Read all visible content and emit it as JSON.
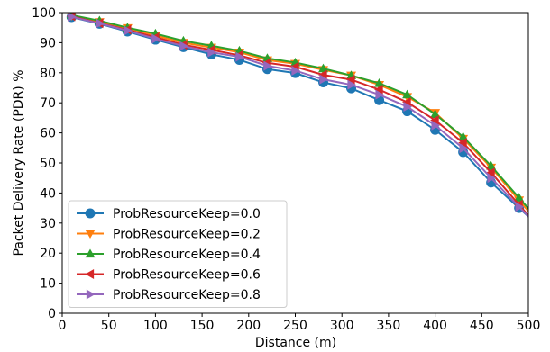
{
  "chart_data": {
    "type": "line",
    "title": "",
    "xlabel": "Distance (m)",
    "ylabel": "Packet Delivery Rate (PDR) %",
    "xlim": [
      0,
      500
    ],
    "ylim": [
      0,
      100
    ],
    "xticks": [
      0,
      50,
      100,
      150,
      200,
      250,
      300,
      350,
      400,
      450,
      500
    ],
    "yticks": [
      0,
      10,
      20,
      30,
      40,
      50,
      60,
      70,
      80,
      90,
      100
    ],
    "grid": false,
    "legend_position": "lower-left",
    "x": [
      10,
      40,
      70,
      100,
      130,
      160,
      190,
      220,
      250,
      280,
      310,
      340,
      370,
      400,
      430,
      460,
      490
    ],
    "series": [
      {
        "name": "ProbResourceKeep=0.0",
        "color": "#1f77b4",
        "marker": "circle",
        "values": [
          98.5,
          96.3,
          93.7,
          91.0,
          88.5,
          86.1,
          84.3,
          81.2,
          79.9,
          76.8,
          74.8,
          70.9,
          67.2,
          61.0,
          53.6,
          43.5,
          35.0
        ]
      },
      {
        "name": "ProbResourceKeep=0.2",
        "color": "#ff7f0e",
        "marker": "triangle-down",
        "values": [
          99.0,
          96.9,
          94.9,
          92.4,
          90.0,
          88.4,
          86.8,
          84.2,
          83.0,
          81.0,
          79.1,
          76.0,
          72.0,
          66.7,
          58.1,
          48.5,
          37.6
        ]
      },
      {
        "name": "ProbResourceKeep=0.4",
        "color": "#2ca02c",
        "marker": "triangle-up",
        "values": [
          99.2,
          97.3,
          95.0,
          93.0,
          90.6,
          89.0,
          87.3,
          84.8,
          83.4,
          81.4,
          79.1,
          76.5,
          72.7,
          66.2,
          58.7,
          49.0,
          38.4
        ]
      },
      {
        "name": "ProbResourceKeep=0.6",
        "color": "#d62728",
        "marker": "triangle-left",
        "values": [
          98.8,
          96.5,
          94.3,
          91.8,
          89.3,
          87.6,
          85.8,
          83.3,
          82.0,
          79.3,
          77.7,
          74.4,
          70.2,
          64.2,
          56.7,
          46.8,
          36.1
        ]
      },
      {
        "name": "ProbResourceKeep=0.8",
        "color": "#9467bd",
        "marker": "triangle-right",
        "values": [
          98.6,
          96.4,
          94.0,
          91.3,
          88.9,
          86.8,
          85.3,
          82.3,
          80.7,
          77.8,
          76.0,
          72.7,
          68.7,
          62.5,
          54.9,
          45.0,
          35.4
        ]
      }
    ]
  }
}
